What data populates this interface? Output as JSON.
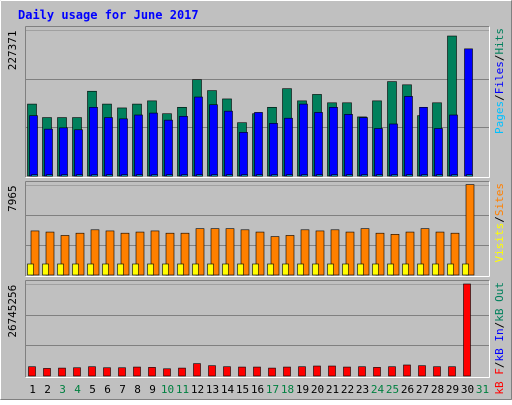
{
  "colors": {
    "background": "#c0c0c0",
    "frame_dark": "#808080",
    "frame_light": "#ffffff",
    "title_text": "#0000ff",
    "hits": "#00805c",
    "files": "#0000ff",
    "pages": "#00c0ff",
    "visits": "#ffff00",
    "sites": "#ff8000",
    "kbytes": "#ff0000",
    "kb_in": "#0000ff",
    "kb_out": "#00805c",
    "weekend_label": "#008040",
    "weekday_label": "#000000",
    "separator": "#000000"
  },
  "chart_data": {
    "type": "bar",
    "title": "Daily usage for June 2017",
    "categories": [
      "1",
      "2",
      "3",
      "4",
      "5",
      "6",
      "7",
      "8",
      "9",
      "10",
      "11",
      "12",
      "13",
      "14",
      "15",
      "16",
      "17",
      "18",
      "19",
      "20",
      "21",
      "22",
      "23",
      "24",
      "25",
      "26",
      "27",
      "28",
      "29",
      "30",
      "31"
    ],
    "weekend_days": [
      3,
      4,
      10,
      11,
      17,
      18,
      24,
      25,
      31
    ],
    "panels": [
      {
        "id": "hits-files-pages",
        "max_label": "227371",
        "ymax": 227371,
        "legend": [
          {
            "text": "Pages",
            "color_key": "pages"
          },
          {
            "text": "/",
            "color_key": "separator"
          },
          {
            "text": "Files",
            "color_key": "files"
          },
          {
            "text": "/",
            "color_key": "separator"
          },
          {
            "text": "Hits",
            "color_key": "hits"
          }
        ],
        "series": [
          {
            "name": "Hits",
            "color_key": "hits",
            "values": [
              112000,
              91000,
              91000,
              91000,
              132000,
              112000,
              106000,
              112000,
              117000,
              97000,
              107000,
              150000,
              133000,
              120000,
              83000,
              97000,
              107000,
              136000,
              117000,
              127000,
              114000,
              114000,
              92000,
              117000,
              147000,
              142000,
              94000,
              114000,
              218000,
              0,
              0
            ]
          },
          {
            "name": "Files",
            "color_key": "files",
            "values": [
              94000,
              73000,
              75000,
              72000,
              107000,
              91000,
              89000,
              95000,
              98000,
              87000,
              93000,
              123000,
              111000,
              101000,
              68000,
              99000,
              82000,
              90000,
              112000,
              99000,
              107000,
              96000,
              91000,
              74000,
              81000,
              124000,
              107000,
              74000,
              95000,
              198000,
              0
            ]
          },
          {
            "name": "Pages",
            "color_key": "pages",
            "values": [
              2000,
              2000,
              2000,
              2000,
              2000,
              2000,
              2000,
              2000,
              2000,
              2000,
              2000,
              2000,
              2000,
              2000,
              2000,
              2000,
              2000,
              2000,
              2000,
              2000,
              2000,
              2000,
              2000,
              2000,
              2000,
              2000,
              2000,
              2000,
              2000,
              2000,
              0
            ]
          }
        ]
      },
      {
        "id": "visits-sites",
        "max_label": "7965",
        "ymax": 7965,
        "legend": [
          {
            "text": "Visits",
            "color_key": "visits"
          },
          {
            "text": "/",
            "color_key": "separator"
          },
          {
            "text": "Sites",
            "color_key": "sites"
          }
        ],
        "series": [
          {
            "name": "Sites",
            "color_key": "sites",
            "values": [
              3900,
              3800,
              3500,
              3700,
              4000,
              3900,
              3700,
              3800,
              3900,
              3700,
              3700,
              4100,
              4100,
              4100,
              4000,
              3800,
              3400,
              3500,
              4000,
              3900,
              4000,
              3800,
              4100,
              3700,
              3600,
              3800,
              4100,
              3800,
              3700,
              8000,
              0
            ]
          },
          {
            "name": "Visits",
            "color_key": "visits",
            "values": [
              550,
              550,
              550,
              550,
              550,
              550,
              550,
              550,
              550,
              550,
              550,
              550,
              550,
              550,
              550,
              550,
              550,
              550,
              550,
              550,
              550,
              550,
              550,
              550,
              550,
              550,
              550,
              550,
              550,
              550,
              0
            ]
          }
        ]
      },
      {
        "id": "kbytes",
        "max_label": "26745256",
        "ymax": 26745256,
        "legend": [
          {
            "text": "kB F",
            "color_key": "kbytes"
          },
          {
            "text": "/",
            "color_key": "separator"
          },
          {
            "text": "kB In",
            "color_key": "kb_in"
          },
          {
            "text": "/",
            "color_key": "separator"
          },
          {
            "text": "kB Out",
            "color_key": "kb_out"
          }
        ],
        "series": [
          {
            "name": "kB F",
            "color_key": "kbytes",
            "values": [
              2700000,
              2200000,
              2300000,
              2400000,
              2700000,
              2400000,
              2400000,
              2600000,
              2500000,
              2100000,
              2300000,
              3600000,
              3000000,
              2700000,
              2600000,
              2600000,
              2300000,
              2600000,
              2700000,
              2900000,
              2900000,
              2600000,
              2700000,
              2500000,
              2700000,
              3200000,
              3000000,
              2700000,
              2700000,
              26745256,
              0
            ]
          }
        ]
      }
    ]
  }
}
